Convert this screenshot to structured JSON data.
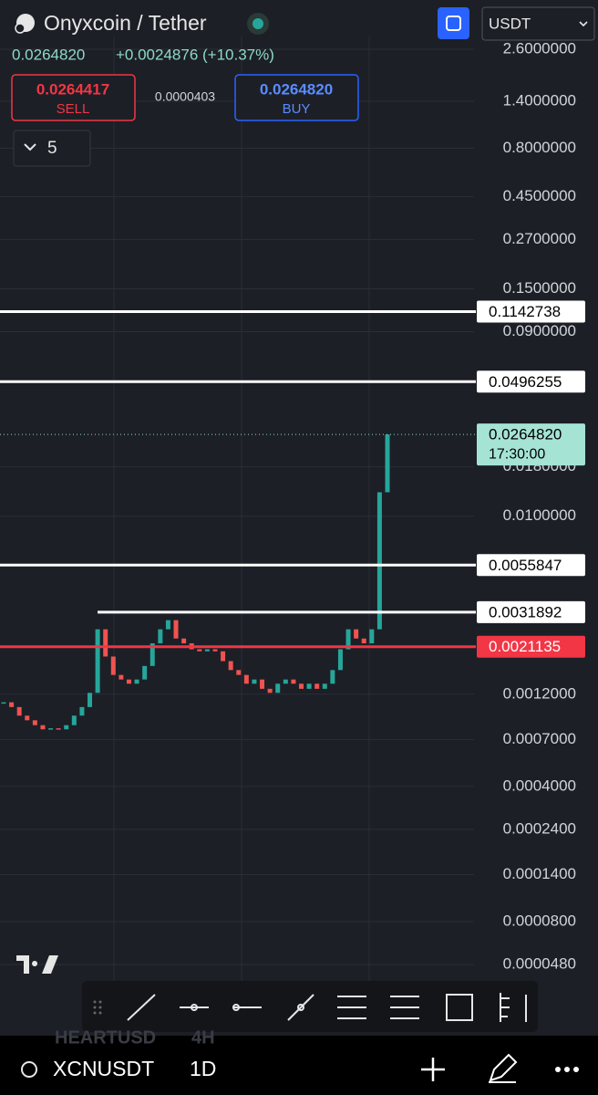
{
  "header": {
    "title": "Onyxcoin / Tether",
    "quote_currency": "USDT",
    "last_price": "0.0264820",
    "change": "+0.0024876 (+10.37%)",
    "sell_price": "0.0264417",
    "sell_label": "SELL",
    "spread": "0.0000403",
    "buy_price": "0.0264820",
    "buy_label": "BUY",
    "indicators_count": "5"
  },
  "chart_data": {
    "type": "candlestick",
    "log_scale": true,
    "up_color": "#26a69a",
    "down_color": "#ef5350",
    "ylim": [
      4.8e-05,
      2.6
    ],
    "yticks": [
      {
        "value": 2.6,
        "label": "2.6000000"
      },
      {
        "value": 1.4,
        "label": "1.4000000"
      },
      {
        "value": 0.8,
        "label": "0.8000000"
      },
      {
        "value": 0.45,
        "label": "0.4500000"
      },
      {
        "value": 0.27,
        "label": "0.2700000"
      },
      {
        "value": 0.15,
        "label": "0.1500000"
      },
      {
        "value": 0.09,
        "label": "0.0900000"
      },
      {
        "value": 0.018,
        "label": "0.0180000"
      },
      {
        "value": 0.01,
        "label": "0.0100000"
      },
      {
        "value": 0.0012,
        "label": "0.0012000"
      },
      {
        "value": 0.0007,
        "label": "0.0007000"
      },
      {
        "value": 0.0004,
        "label": "0.0004000"
      },
      {
        "value": 0.00024,
        "label": "0.0002400"
      },
      {
        "value": 0.00014,
        "label": "0.0001400"
      },
      {
        "value": 8e-05,
        "label": "0.0000800"
      },
      {
        "value": 4.8e-05,
        "label": "0.0000480"
      }
    ],
    "levels": [
      {
        "value": 0.1142738,
        "color": "#ffffff"
      },
      {
        "value": 0.0496255,
        "color": "#ffffff"
      },
      {
        "value": 0.0055847,
        "color": "#ffffff"
      },
      {
        "value": 0.0031892,
        "color": "#ffffff"
      },
      {
        "value": 0.0021135,
        "color": "#f23645"
      }
    ],
    "current_price": {
      "value": 0.026482,
      "label": "0.0264820",
      "countdown": "17:30:00"
    },
    "values": [
      0.00109,
      0.00103,
      0.00093,
      0.00088,
      0.00083,
      0.00079,
      0.0008,
      0.00079,
      0.00083,
      0.00093,
      0.00103,
      0.00122,
      0.0026,
      0.00188,
      0.00151,
      0.00143,
      0.00136,
      0.00143,
      0.00168,
      0.0022,
      0.0026,
      0.0029,
      0.00233,
      0.0022,
      0.00205,
      0.002,
      0.00205,
      0.002,
      0.00178,
      0.0016,
      0.00151,
      0.00136,
      0.00143,
      0.00128,
      0.00122,
      0.00136,
      0.00143,
      0.00136,
      0.00128,
      0.00136,
      0.00128,
      0.00136,
      0.0016,
      0.00205,
      0.0026,
      0.00233,
      0.0022,
      0.0026,
      0.0133,
      0.026482
    ]
  },
  "footer": {
    "ghost_symbol": "HEARTUSD",
    "ghost_interval": "4H",
    "symbol": "XCNUSDT",
    "interval": "1D"
  }
}
